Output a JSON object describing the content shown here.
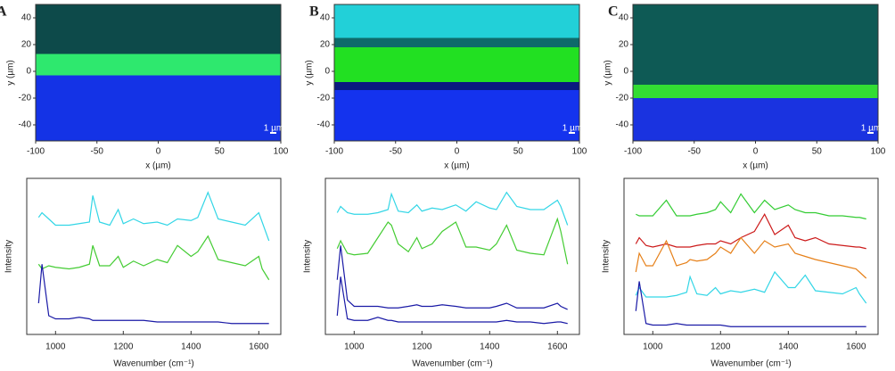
{
  "chart_data": [
    {
      "type": "image",
      "label": "A",
      "xlabel": "x (µm)",
      "ylabel": "y (µm)",
      "xlim": [
        -100,
        100
      ],
      "ylim": [
        -52,
        50
      ],
      "xticks": [
        -100,
        -50,
        0,
        50,
        100
      ],
      "yticks": [
        -40,
        -20,
        0,
        20,
        40
      ],
      "scale_bar": "1 µm",
      "bands": [
        {
          "color": "#0d4a4a",
          "from": 50,
          "to": 13
        },
        {
          "color": "#2ee86e",
          "from": 13,
          "to": -3
        },
        {
          "color": "#1433e6",
          "from": -3,
          "to": -52
        }
      ]
    },
    {
      "type": "line",
      "xlabel": "Wavenumber (cm⁻¹)",
      "ylabel": "Intensity",
      "xlim": [
        915,
        1665
      ],
      "ylim": [
        0,
        100
      ],
      "xticks": [
        1000,
        1200,
        1400,
        1600
      ],
      "x": [
        950,
        960,
        980,
        1000,
        1040,
        1070,
        1100,
        1110,
        1130,
        1160,
        1185,
        1200,
        1230,
        1260,
        1300,
        1330,
        1360,
        1400,
        1420,
        1450,
        1480,
        1520,
        1560,
        1600,
        1610,
        1630
      ],
      "series": [
        {
          "color": "#33d6e6",
          "values": [
            75,
            78,
            74,
            70,
            70,
            71,
            72,
            89,
            72,
            70,
            80,
            71,
            74,
            71,
            72,
            70,
            74,
            73,
            75,
            91,
            74,
            72,
            70,
            78,
            72,
            60
          ]
        },
        {
          "color": "#44cc33",
          "values": [
            45,
            42,
            44,
            43,
            42,
            43,
            45,
            57,
            44,
            44,
            50,
            43,
            47,
            44,
            48,
            46,
            57,
            50,
            53,
            63,
            48,
            46,
            44,
            50,
            42,
            35
          ]
        },
        {
          "color": "#1a1aa6",
          "values": [
            20,
            45,
            12,
            10,
            10,
            11,
            10,
            9,
            9,
            9,
            9,
            9,
            9,
            9,
            8,
            8,
            8,
            8,
            8,
            8,
            8,
            7,
            7,
            7,
            7,
            7
          ]
        }
      ]
    },
    {
      "type": "image",
      "label": "B",
      "xlabel": "x (µm)",
      "ylabel": "y (µm)",
      "xlim": [
        -100,
        100
      ],
      "ylim": [
        -52,
        50
      ],
      "xticks": [
        -100,
        -50,
        0,
        50,
        100
      ],
      "yticks": [
        -40,
        -20,
        0,
        20,
        40
      ],
      "scale_bar": "1 µm",
      "bands": [
        {
          "color": "#22d0d8",
          "from": 50,
          "to": 25
        },
        {
          "color": "#0e6a6a",
          "from": 25,
          "to": 18
        },
        {
          "color": "#22e022",
          "from": 18,
          "to": -8
        },
        {
          "color": "#0a1a80",
          "from": -8,
          "to": -14
        },
        {
          "color": "#1433ee",
          "from": -14,
          "to": -52
        }
      ]
    },
    {
      "type": "line",
      "xlabel": "Wavenumber (cm⁻¹)",
      "ylabel": "Intensity",
      "xlim": [
        915,
        1665
      ],
      "ylim": [
        0,
        100
      ],
      "xticks": [
        1000,
        1200,
        1400,
        1600
      ],
      "x": [
        950,
        960,
        980,
        1000,
        1040,
        1070,
        1100,
        1110,
        1130,
        1160,
        1185,
        1200,
        1230,
        1260,
        1300,
        1330,
        1360,
        1400,
        1420,
        1450,
        1480,
        1520,
        1560,
        1600,
        1610,
        1630
      ],
      "series": [
        {
          "color": "#33d6e6",
          "values": [
            78,
            82,
            78,
            77,
            77,
            78,
            80,
            90,
            79,
            78,
            83,
            79,
            81,
            80,
            83,
            79,
            85,
            81,
            80,
            91,
            82,
            80,
            80,
            86,
            82,
            70
          ]
        },
        {
          "color": "#44cc33",
          "values": [
            55,
            60,
            52,
            51,
            52,
            62,
            72,
            70,
            58,
            53,
            62,
            55,
            58,
            66,
            72,
            56,
            56,
            54,
            58,
            70,
            54,
            52,
            51,
            74,
            66,
            45
          ]
        },
        {
          "color": "#1a1aa6",
          "values": [
            35,
            57,
            22,
            18,
            18,
            18,
            17,
            17,
            17,
            18,
            19,
            18,
            18,
            19,
            18,
            17,
            17,
            17,
            18,
            20,
            17,
            17,
            17,
            20,
            18,
            16
          ]
        },
        {
          "color": "#1a1aa6",
          "values": [
            12,
            37,
            10,
            9,
            9,
            11,
            9,
            9,
            8,
            8,
            8,
            8,
            8,
            8,
            8,
            8,
            8,
            8,
            8,
            9,
            8,
            8,
            7,
            8,
            8,
            7
          ]
        }
      ]
    },
    {
      "type": "image",
      "label": "C",
      "xlabel": "x (µm)",
      "ylabel": "y (µm)",
      "xlim": [
        -100,
        100
      ],
      "ylim": [
        -52,
        50
      ],
      "xticks": [
        -100,
        -50,
        0,
        50,
        100
      ],
      "yticks": [
        -40,
        -20,
        0,
        20,
        40
      ],
      "scale_bar": "1 µm",
      "bands": [
        {
          "color": "#0e5a55",
          "from": 50,
          "to": -10
        },
        {
          "color": "#33dd33",
          "from": -10,
          "to": -20
        },
        {
          "color": "#1a33e0",
          "from": -20,
          "to": -52
        }
      ]
    },
    {
      "type": "line",
      "xlabel": "Wavenumber (cm⁻¹)",
      "ylabel": "Intensity",
      "xlim": [
        915,
        1665
      ],
      "ylim": [
        0,
        100
      ],
      "xticks": [
        1000,
        1200,
        1400,
        1600
      ],
      "x": [
        950,
        960,
        980,
        1000,
        1040,
        1070,
        1100,
        1110,
        1130,
        1160,
        1185,
        1200,
        1230,
        1260,
        1300,
        1330,
        1360,
        1400,
        1420,
        1450,
        1480,
        1520,
        1560,
        1600,
        1610,
        1630
      ],
      "series": [
        {
          "color": "#33cc33",
          "values": [
            77,
            76,
            76,
            76,
            86,
            76,
            76,
            76,
            77,
            78,
            80,
            85,
            78,
            90,
            78,
            86,
            80,
            83,
            80,
            78,
            78,
            76,
            76,
            75,
            75,
            74
          ]
        },
        {
          "color": "#cc1a1a",
          "values": [
            58,
            62,
            57,
            56,
            58,
            56,
            56,
            56,
            57,
            58,
            58,
            60,
            58,
            62,
            66,
            77,
            64,
            70,
            62,
            60,
            62,
            58,
            57,
            56,
            56,
            55
          ]
        },
        {
          "color": "#e68019",
          "values": [
            40,
            52,
            44,
            44,
            60,
            44,
            46,
            48,
            47,
            48,
            52,
            56,
            52,
            62,
            52,
            60,
            56,
            58,
            52,
            50,
            48,
            46,
            44,
            42,
            40,
            36
          ]
        },
        {
          "color": "#33d6e6",
          "values": [
            25,
            30,
            24,
            24,
            24,
            25,
            27,
            37,
            26,
            25,
            30,
            26,
            28,
            27,
            29,
            27,
            40,
            30,
            30,
            38,
            28,
            27,
            26,
            30,
            26,
            20
          ]
        },
        {
          "color": "#1a1aa6",
          "values": [
            15,
            34,
            7,
            6,
            6,
            7,
            6,
            6,
            6,
            6,
            6,
            6,
            5,
            5,
            5,
            5,
            5,
            5,
            5,
            5,
            5,
            5,
            5,
            5,
            5,
            5
          ]
        }
      ]
    }
  ]
}
